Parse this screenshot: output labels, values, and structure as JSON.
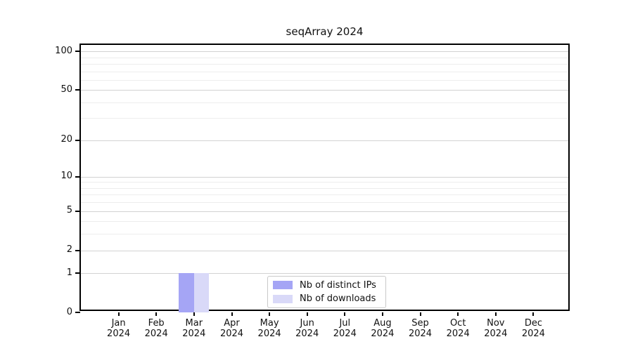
{
  "chart_data": {
    "type": "bar",
    "title": "seqArray 2024",
    "x_labels": [
      {
        "month": "Jan",
        "year": "2024"
      },
      {
        "month": "Feb",
        "year": "2024"
      },
      {
        "month": "Mar",
        "year": "2024"
      },
      {
        "month": "Apr",
        "year": "2024"
      },
      {
        "month": "May",
        "year": "2024"
      },
      {
        "month": "Jun",
        "year": "2024"
      },
      {
        "month": "Jul",
        "year": "2024"
      },
      {
        "month": "Aug",
        "year": "2024"
      },
      {
        "month": "Sep",
        "year": "2024"
      },
      {
        "month": "Oct",
        "year": "2024"
      },
      {
        "month": "Nov",
        "year": "2024"
      },
      {
        "month": "Dec",
        "year": "2024"
      }
    ],
    "y_axis": {
      "scale": "log1p",
      "tick_values": [
        0,
        1,
        2,
        5,
        10,
        20,
        50,
        100
      ],
      "minor_gridline_values": [
        3,
        4,
        6,
        7,
        8,
        9,
        30,
        40,
        60,
        70,
        80,
        90
      ],
      "ylim": [
        0,
        112
      ],
      "grid": "on"
    },
    "series": [
      {
        "name": "Nb of distinct IPs",
        "color": "#a5a5f5",
        "values": [
          0,
          0,
          1,
          0,
          0,
          0,
          0,
          0,
          0,
          0,
          0,
          0
        ]
      },
      {
        "name": "Nb of downloads",
        "color": "#d9d9f8",
        "values": [
          0,
          0,
          1,
          0,
          0,
          0,
          0,
          0,
          0,
          0,
          0,
          0
        ]
      }
    ],
    "legend": {
      "position": "lower center of plot",
      "entries": [
        "Nb of distinct IPs",
        "Nb of downloads"
      ]
    }
  }
}
